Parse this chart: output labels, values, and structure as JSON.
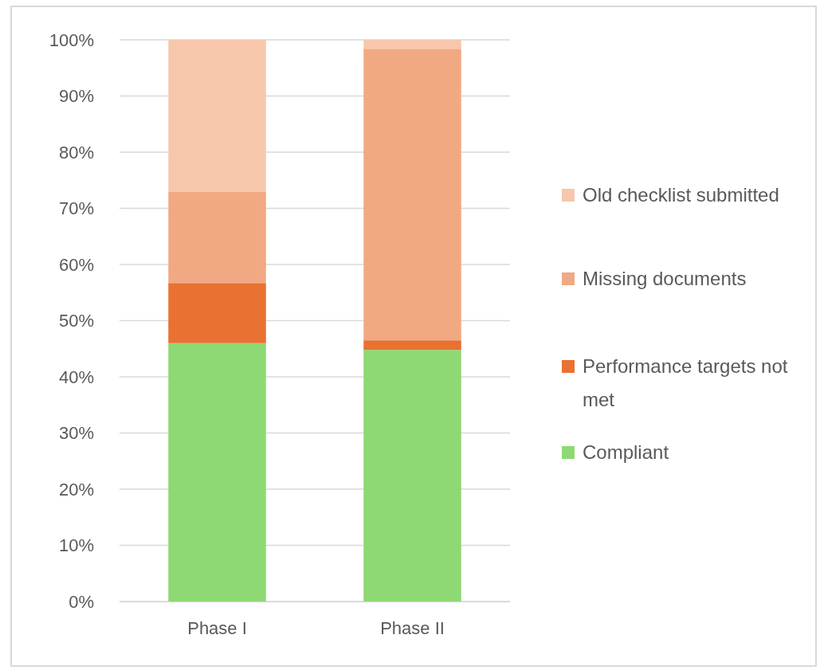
{
  "chart_data": {
    "type": "bar",
    "stacked": true,
    "categories": [
      "Phase I",
      "Phase II"
    ],
    "series": [
      {
        "name": "Compliant",
        "color": "#8ed973",
        "values": [
          46,
          44.8
        ]
      },
      {
        "name": "Performance targets not met",
        "color": "#e97132",
        "values": [
          10.7,
          1.7
        ]
      },
      {
        "name": "Missing documents",
        "color": "#f1a983",
        "values": [
          16.3,
          51.9
        ]
      },
      {
        "name": "Old checklist submitted",
        "color": "#f7c7ac",
        "values": [
          27,
          1.6
        ]
      }
    ],
    "ylim": [
      0,
      100
    ],
    "yticks": [
      {
        "value": 0,
        "label": "0%"
      },
      {
        "value": 10,
        "label": "10%"
      },
      {
        "value": 20,
        "label": "20%"
      },
      {
        "value": 30,
        "label": "30%"
      },
      {
        "value": 40,
        "label": "40%"
      },
      {
        "value": 50,
        "label": "50%"
      },
      {
        "value": 60,
        "label": "60%"
      },
      {
        "value": 70,
        "label": "70%"
      },
      {
        "value": 80,
        "label": "80%"
      },
      {
        "value": 90,
        "label": "90%"
      },
      {
        "value": 100,
        "label": "100%"
      }
    ],
    "grid": "y",
    "legend": "right"
  }
}
